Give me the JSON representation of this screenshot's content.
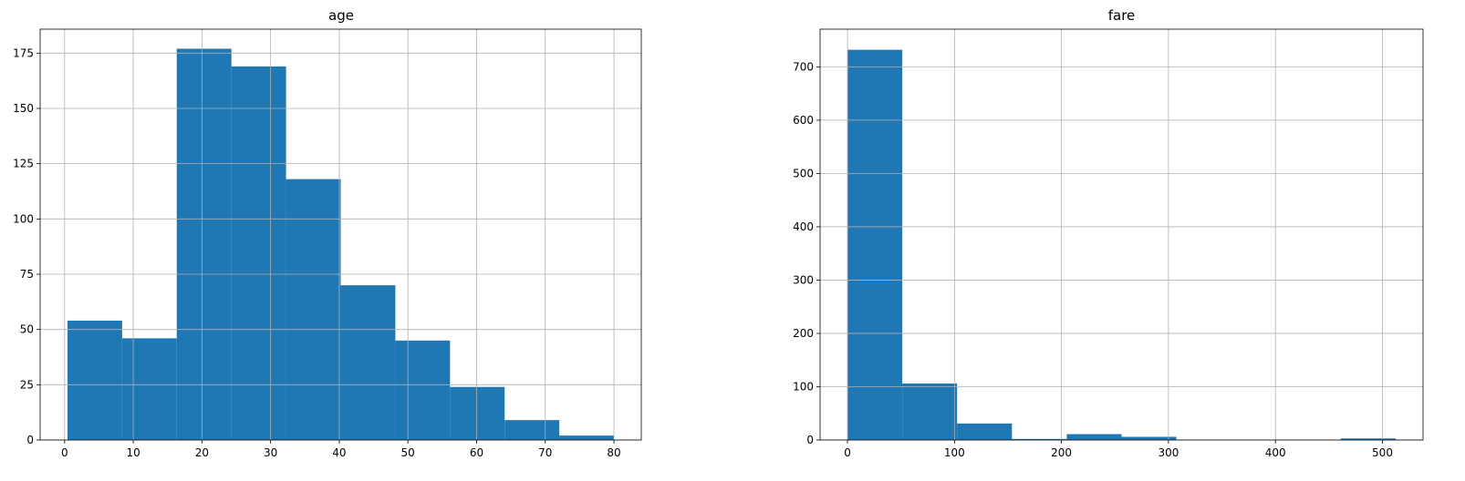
{
  "figure": {
    "background": "#ffffff",
    "bar_color": "#1f77b4",
    "grid_color": "#b0b0b0",
    "axes_color": "#000000"
  },
  "chart_data": [
    {
      "type": "bar",
      "title": "age",
      "xlabel": "",
      "ylabel": "",
      "grid": true,
      "legend": "none",
      "xlim": [
        -3.56,
        83.98
      ],
      "ylim": [
        0,
        185.85
      ],
      "xticks": [
        0,
        10,
        20,
        30,
        40,
        50,
        60,
        70,
        80
      ],
      "xtick_labels": [
        "0",
        "10",
        "20",
        "30",
        "40",
        "50",
        "60",
        "70",
        "80"
      ],
      "yticks": [
        0,
        25,
        50,
        75,
        100,
        125,
        150,
        175
      ],
      "ytick_labels": [
        "0",
        "25",
        "50",
        "75",
        "100",
        "125",
        "150",
        "175"
      ],
      "bin_edges": [
        0.42,
        8.378,
        16.336,
        24.294,
        32.252,
        40.21,
        48.168,
        56.126,
        64.084,
        72.042,
        80.0
      ],
      "values": [
        54,
        46,
        177,
        169,
        118,
        70,
        45,
        24,
        9,
        2
      ]
    },
    {
      "type": "bar",
      "title": "fare",
      "xlabel": "",
      "ylabel": "",
      "grid": true,
      "legend": "none",
      "xlim": [
        -25.6,
        537.93
      ],
      "ylim": [
        0,
        770.7
      ],
      "xticks": [
        0,
        100,
        200,
        300,
        400,
        500
      ],
      "xtick_labels": [
        "0",
        "100",
        "200",
        "300",
        "400",
        "500"
      ],
      "yticks": [
        0,
        100,
        200,
        300,
        400,
        500,
        600,
        700
      ],
      "ytick_labels": [
        "0",
        "100",
        "200",
        "300",
        "400",
        "500",
        "600",
        "700"
      ],
      "bin_edges": [
        0,
        51.233,
        102.466,
        153.699,
        204.932,
        256.165,
        307.398,
        358.63,
        409.863,
        461.096,
        512.329
      ],
      "values": [
        732,
        106,
        31,
        2,
        11,
        6,
        0,
        0,
        0,
        3
      ]
    }
  ]
}
